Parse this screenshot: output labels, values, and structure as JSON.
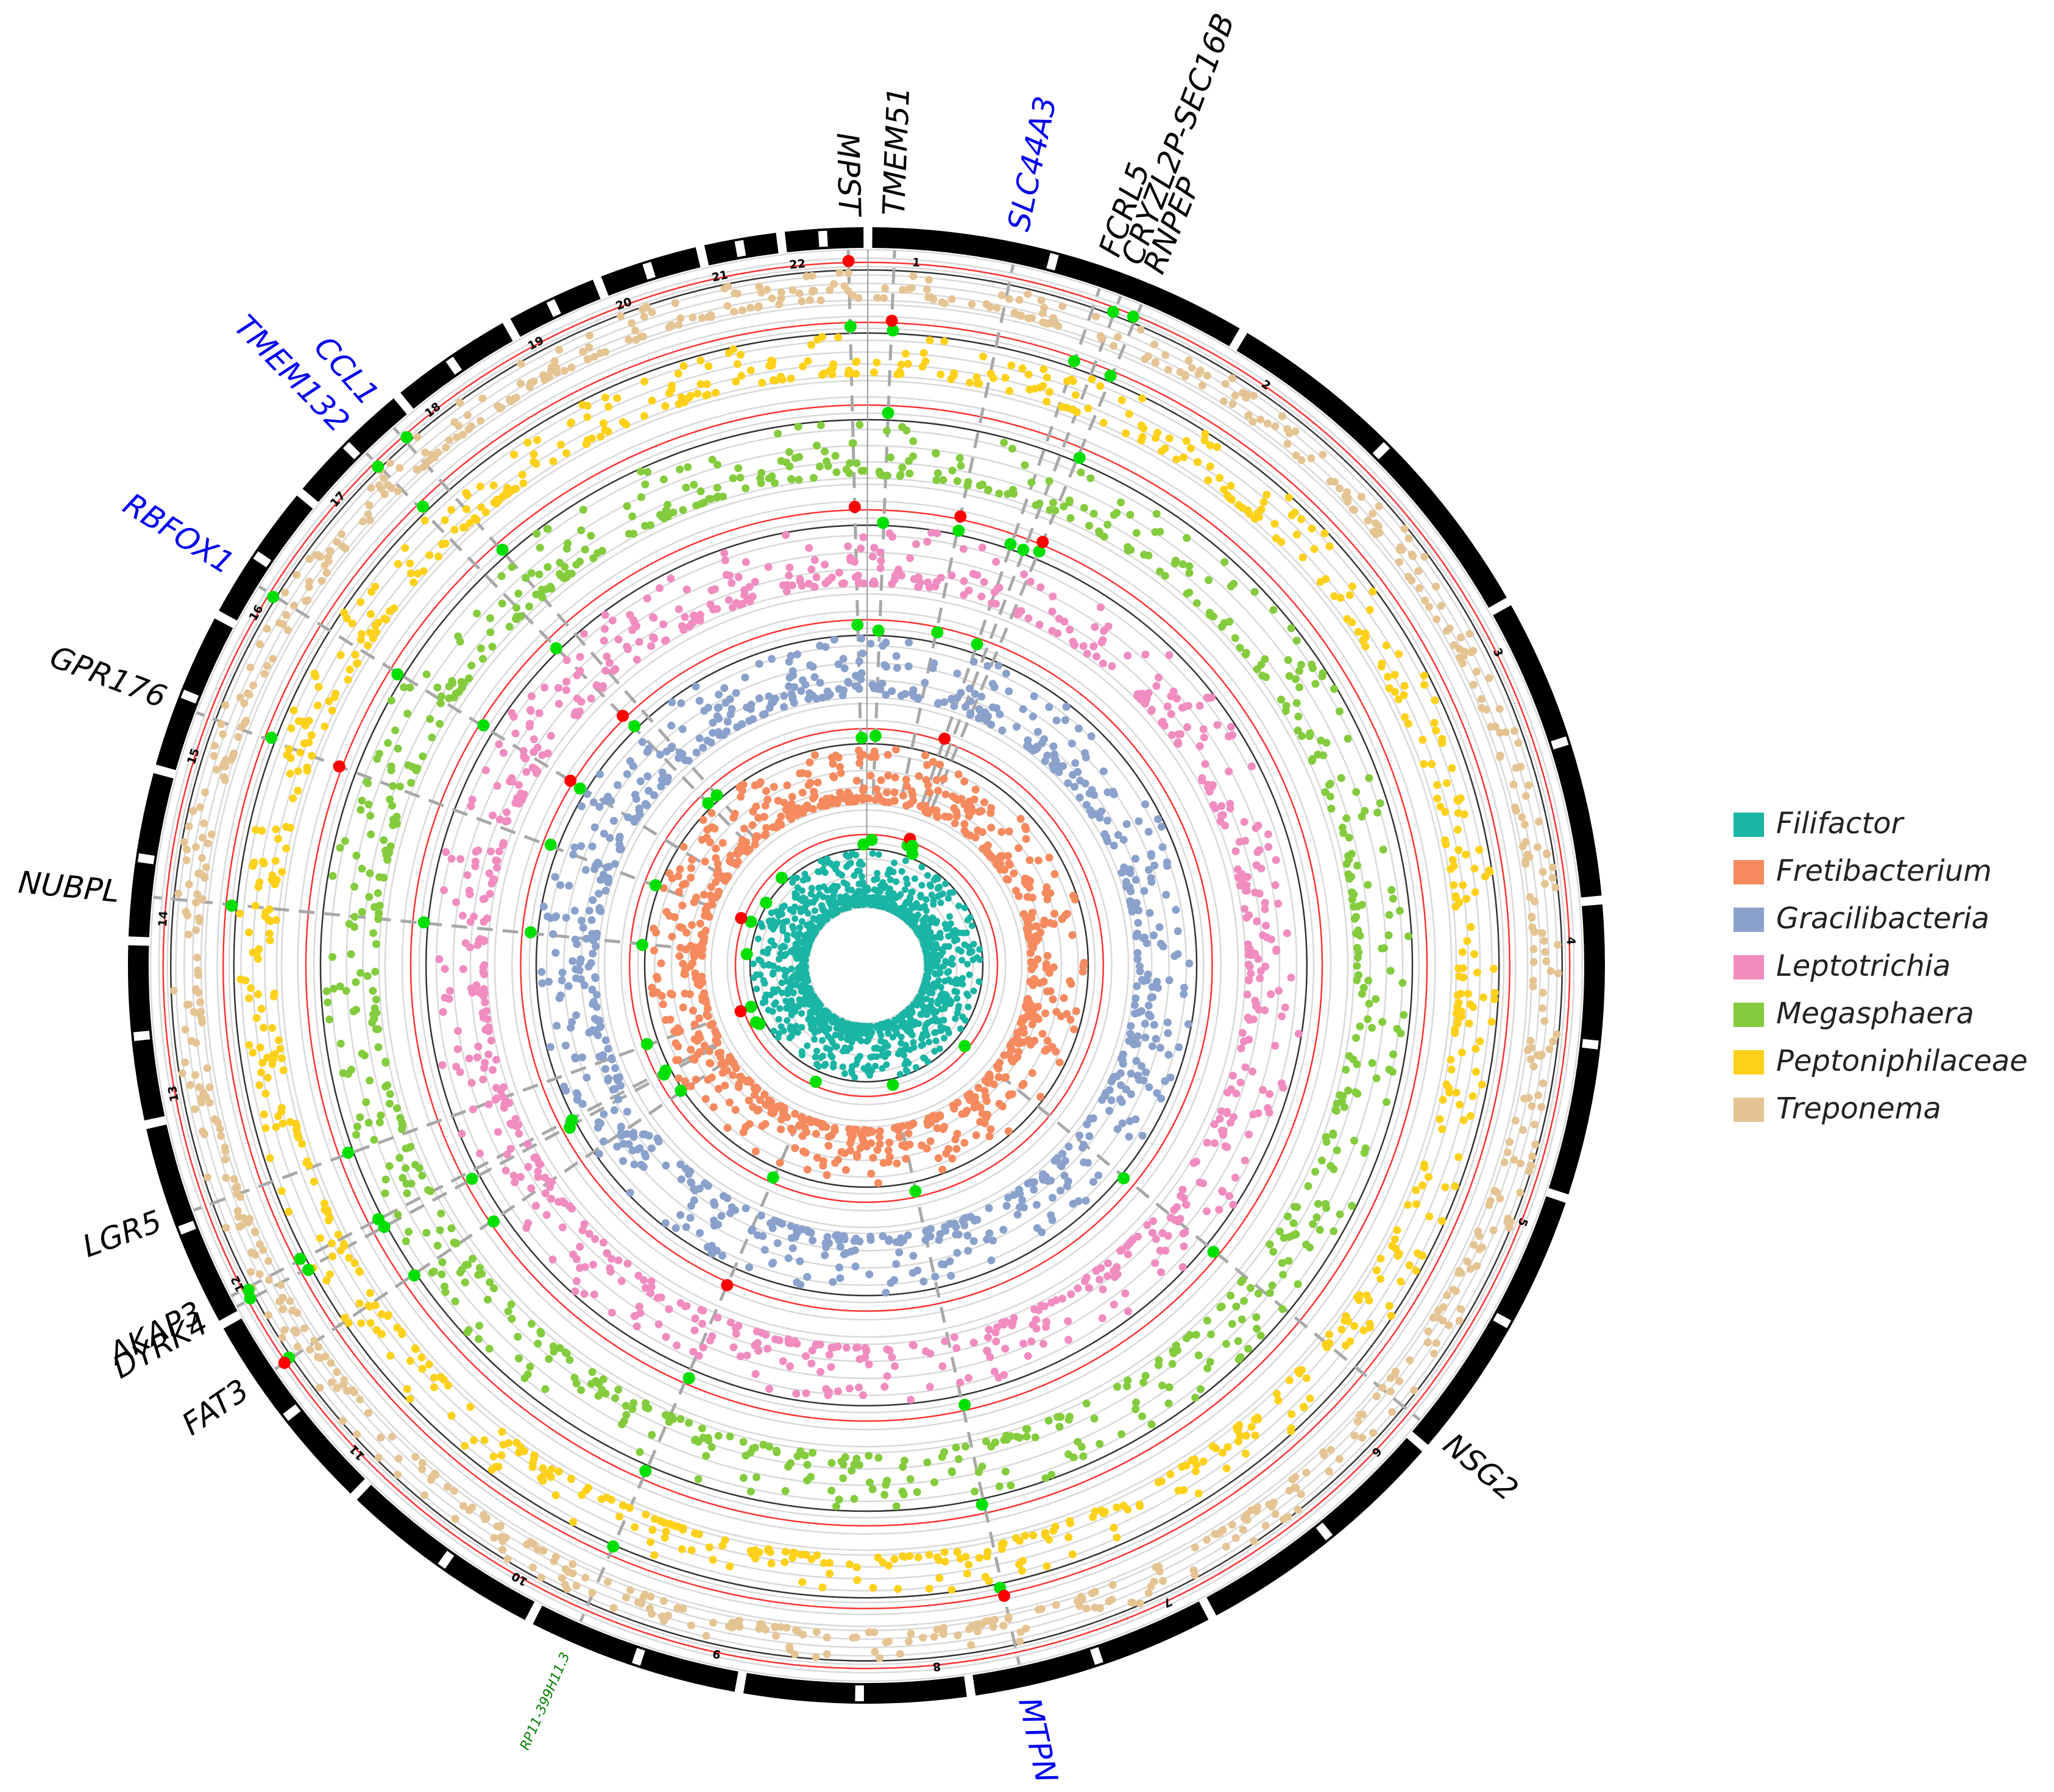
{
  "chart_data": {
    "type": "circular-manhattan",
    "title": "",
    "chromosomes": [
      "1",
      "2",
      "3",
      "4",
      "5",
      "6",
      "7",
      "8",
      "9",
      "10",
      "11",
      "12",
      "13",
      "14",
      "15",
      "16",
      "17",
      "18",
      "19",
      "20",
      "21",
      "22"
    ],
    "chromosome_weights": [
      249,
      242,
      198,
      190,
      181,
      171,
      159,
      145,
      138,
      134,
      135,
      133,
      114,
      107,
      102,
      90,
      83,
      80,
      59,
      64,
      47,
      51
    ],
    "series": [
      {
        "name": "Filifactor",
        "color": "#1ab5a4",
        "ring": 1
      },
      {
        "name": "Fretibacterium",
        "color": "#f58a5f",
        "ring": 2
      },
      {
        "name": "Gracilibacteria",
        "color": "#8aa1cb",
        "ring": 3
      },
      {
        "name": "Leptotrichia",
        "color": "#f08cc0",
        "ring": 4
      },
      {
        "name": "Megasphaera",
        "color": "#84cc3e",
        "ring": 5
      },
      {
        "name": "Peptoniphilaceae",
        "color": "#ffd11a",
        "ring": 6
      },
      {
        "name": "Treponema",
        "color": "#e5c494",
        "ring": 7
      }
    ],
    "significance_colors": {
      "suggestive": "#00e000",
      "genome_wide": "#ff0000"
    },
    "genes": [
      {
        "label": "MPST",
        "chr": "22",
        "pos": 0.8,
        "color": "#000000"
      },
      {
        "label": "TMEM51",
        "chr": "1",
        "pos": 0.06,
        "color": "#000000"
      },
      {
        "label": "SLC44A3",
        "chr": "1",
        "pos": 0.38,
        "color": "#0000ee"
      },
      {
        "label": "FCRL5",
        "chr": "1",
        "pos": 0.62,
        "color": "#000000"
      },
      {
        "label": "CRYZL2P-SEC16B",
        "chr": "1",
        "pos": 0.68,
        "color": "#000000"
      },
      {
        "label": "RNPEP",
        "chr": "1",
        "pos": 0.74,
        "color": "#000000"
      },
      {
        "label": "CCL1",
        "chr": "17",
        "pos": 0.85,
        "color": "#0000ee"
      },
      {
        "label": "TMEM132",
        "chr": "17",
        "pos": 0.55,
        "color": "#0000ee"
      },
      {
        "label": "RBFOX1",
        "chr": "16",
        "pos": 0.3,
        "color": "#0000ee"
      },
      {
        "label": "GPR176",
        "chr": "15",
        "pos": 0.4,
        "color": "#000000"
      },
      {
        "label": "NUBPL",
        "chr": "14",
        "pos": 0.25,
        "color": "#000000"
      },
      {
        "label": "LGR5",
        "chr": "12",
        "pos": 0.55,
        "color": "#000000"
      },
      {
        "label": "AKAP3",
        "chr": "12",
        "pos": 0.08,
        "color": "#000000"
      },
      {
        "label": "DYRK4",
        "chr": "12",
        "pos": 0.02,
        "color": "#000000"
      },
      {
        "label": "FAT3",
        "chr": "11",
        "pos": 0.7,
        "color": "#000000"
      },
      {
        "label": "RP11-399H11.3",
        "chr": "9",
        "pos": 0.8,
        "color": "#008000"
      },
      {
        "label": "MTPN",
        "chr": "7",
        "pos": 0.8,
        "color": "#0000ee"
      },
      {
        "label": "NSG2",
        "chr": "5",
        "pos": 0.95,
        "color": "#000000"
      }
    ],
    "legend": {
      "placement": "right"
    }
  }
}
